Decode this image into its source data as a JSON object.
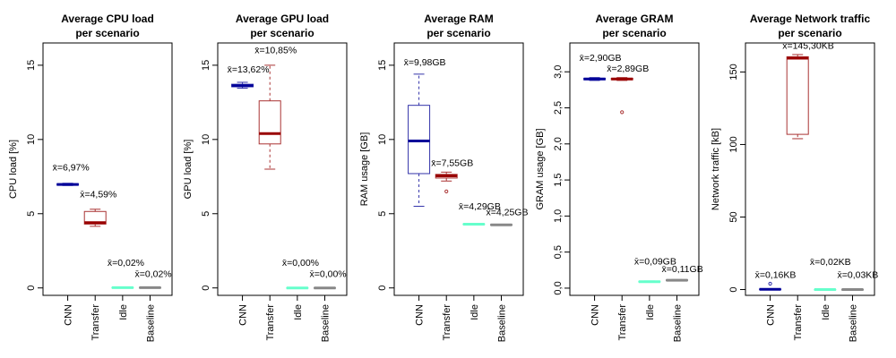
{
  "chart_data": [
    {
      "type": "boxplot",
      "title_line1": "Average CPU load",
      "title_line2": "per scenario",
      "ylabel": "CPU load [%]",
      "ylim": [
        -0.5,
        16.5
      ],
      "yticks": [
        0,
        5,
        10,
        15
      ],
      "yticklabels": [
        "0",
        "5",
        "10",
        "15"
      ],
      "categories": [
        "CNN",
        "Transfer",
        "Idle",
        "Baseline"
      ],
      "mean_labels": [
        "x̄=6,97%",
        "x̄=4,59%",
        "x̄=0,02%",
        "x̄=0,02%"
      ],
      "boxes": [
        {
          "min": 6.9,
          "q1": 6.92,
          "median": 6.97,
          "q3": 7.02,
          "max": 7.05,
          "outliers": []
        },
        {
          "min": 4.15,
          "q1": 4.3,
          "median": 4.4,
          "q3": 5.15,
          "max": 5.3,
          "outliers": []
        },
        {
          "min": 0.0,
          "q1": 0.01,
          "median": 0.02,
          "q3": 0.03,
          "max": 0.04,
          "outliers": []
        },
        {
          "min": 0.0,
          "q1": 0.01,
          "median": 0.02,
          "q3": 0.03,
          "max": 0.04,
          "outliers": []
        }
      ],
      "mean_label_y": [
        7.9,
        6.1,
        1.5,
        0.75
      ]
    },
    {
      "type": "boxplot",
      "title_line1": "Average GPU load",
      "title_line2": "per scenario",
      "ylabel": "GPU load [%]",
      "ylim": [
        -0.5,
        16.5
      ],
      "yticks": [
        0,
        5,
        10,
        15
      ],
      "yticklabels": [
        "0",
        "5",
        "10",
        "15"
      ],
      "categories": [
        "CNN",
        "Transfer",
        "Idle",
        "Baseline"
      ],
      "mean_labels": [
        "x̄=13,62%",
        "x̄=10,85%",
        "x̄=0,00%",
        "x̄=0,00%"
      ],
      "boxes": [
        {
          "min": 13.45,
          "q1": 13.55,
          "median": 13.62,
          "q3": 13.72,
          "max": 13.85,
          "outliers": []
        },
        {
          "min": 8.0,
          "q1": 9.7,
          "median": 10.4,
          "q3": 12.6,
          "max": 15.0,
          "outliers": []
        },
        {
          "min": 0.0,
          "q1": 0.0,
          "median": 0.0,
          "q3": 0.01,
          "max": 0.02,
          "outliers": []
        },
        {
          "min": 0.0,
          "q1": 0.0,
          "median": 0.0,
          "q3": 0.01,
          "max": 0.02,
          "outliers": []
        }
      ],
      "mean_label_y": [
        14.5,
        15.8,
        1.5,
        0.75
      ]
    },
    {
      "type": "boxplot",
      "title_line1": "Average RAM",
      "title_line2": "per scenario",
      "ylabel": "RAM usage [GB]",
      "ylim": [
        -0.5,
        16.5
      ],
      "yticks": [
        0,
        5,
        10,
        15
      ],
      "yticklabels": [
        "0",
        "5",
        "10",
        "15"
      ],
      "categories": [
        "CNN",
        "Transfer",
        "Idle",
        "Baseline"
      ],
      "mean_labels": [
        "x̄=9,98GB",
        "x̄=7,55GB",
        "x̄=4,29GB",
        "x̄=4,25GB"
      ],
      "boxes": [
        {
          "min": 5.5,
          "q1": 7.7,
          "median": 9.9,
          "q3": 12.3,
          "max": 14.4,
          "outliers": []
        },
        {
          "min": 7.2,
          "q1": 7.4,
          "median": 7.55,
          "q3": 7.65,
          "max": 7.8,
          "outliers": [
            6.5
          ]
        },
        {
          "min": 4.25,
          "q1": 4.27,
          "median": 4.29,
          "q3": 4.31,
          "max": 4.33,
          "outliers": []
        },
        {
          "min": 4.21,
          "q1": 4.23,
          "median": 4.25,
          "q3": 4.27,
          "max": 4.29,
          "outliers": []
        }
      ],
      "mean_label_y": [
        15.0,
        8.2,
        5.3,
        4.9
      ]
    },
    {
      "type": "boxplot",
      "title_line1": "Average GRAM",
      "title_line2": "per scenario",
      "ylabel": "GRAM usage [GB]",
      "ylim": [
        -0.1,
        3.4
      ],
      "yticks": [
        0.0,
        0.5,
        1.0,
        1.5,
        2.0,
        2.5,
        3.0
      ],
      "yticklabels": [
        "0,0",
        "0,5",
        "1,0",
        "1,5",
        "2,0",
        "2,5",
        "3,0"
      ],
      "categories": [
        "CNN",
        "Transfer",
        "Idle",
        "Baseline"
      ],
      "mean_labels": [
        "x̄=2,90GB",
        "x̄=2,89GB",
        "x̄=0,09GB",
        "x̄=0,11GB"
      ],
      "boxes": [
        {
          "min": 2.88,
          "q1": 2.89,
          "median": 2.9,
          "q3": 2.91,
          "max": 2.92,
          "outliers": []
        },
        {
          "min": 2.88,
          "q1": 2.89,
          "median": 2.9,
          "q3": 2.91,
          "max": 2.92,
          "outliers": [
            2.44
          ]
        },
        {
          "min": 0.08,
          "q1": 0.085,
          "median": 0.09,
          "q3": 0.095,
          "max": 0.1,
          "outliers": []
        },
        {
          "min": 0.1,
          "q1": 0.105,
          "median": 0.11,
          "q3": 0.115,
          "max": 0.12,
          "outliers": []
        }
      ],
      "mean_label_y": [
        3.15,
        3.0,
        0.33,
        0.22
      ]
    },
    {
      "type": "boxplot",
      "title_line1": "Average Network traffic",
      "title_line2": "per scenario",
      "ylabel": "Network traffic [kB]",
      "ylim": [
        -4,
        170
      ],
      "yticks": [
        0,
        50,
        100,
        150
      ],
      "yticklabels": [
        "0",
        "50",
        "100",
        "150"
      ],
      "categories": [
        "CNN",
        "Transfer",
        "Idle",
        "Baseline"
      ],
      "mean_labels": [
        "x̄=0,16KB",
        "x̄=145,30KB",
        "x̄=0,02KB",
        "x̄=0,03KB"
      ],
      "boxes": [
        {
          "min": 0.0,
          "q1": 0.05,
          "median": 0.15,
          "q3": 0.3,
          "max": 0.5,
          "outliers": [
            4.0
          ]
        },
        {
          "min": 104,
          "q1": 107,
          "median": 159.5,
          "q3": 160.5,
          "max": 162,
          "outliers": []
        },
        {
          "min": 0.0,
          "q1": 0.0,
          "median": 0.02,
          "q3": 0.04,
          "max": 0.06,
          "outliers": []
        },
        {
          "min": 0.0,
          "q1": 0.01,
          "median": 0.03,
          "q3": 0.05,
          "max": 0.07,
          "outliers": []
        }
      ],
      "mean_label_y": [
        8.0,
        166.0,
        17.0,
        8.0
      ]
    }
  ],
  "colors": {
    "cnn_box": "#3333aa",
    "cnn_median": "#000099",
    "transfer_box": "#aa3333",
    "transfer_median": "#990000",
    "idle_median": "#66ffcc",
    "baseline_median": "#888888"
  }
}
